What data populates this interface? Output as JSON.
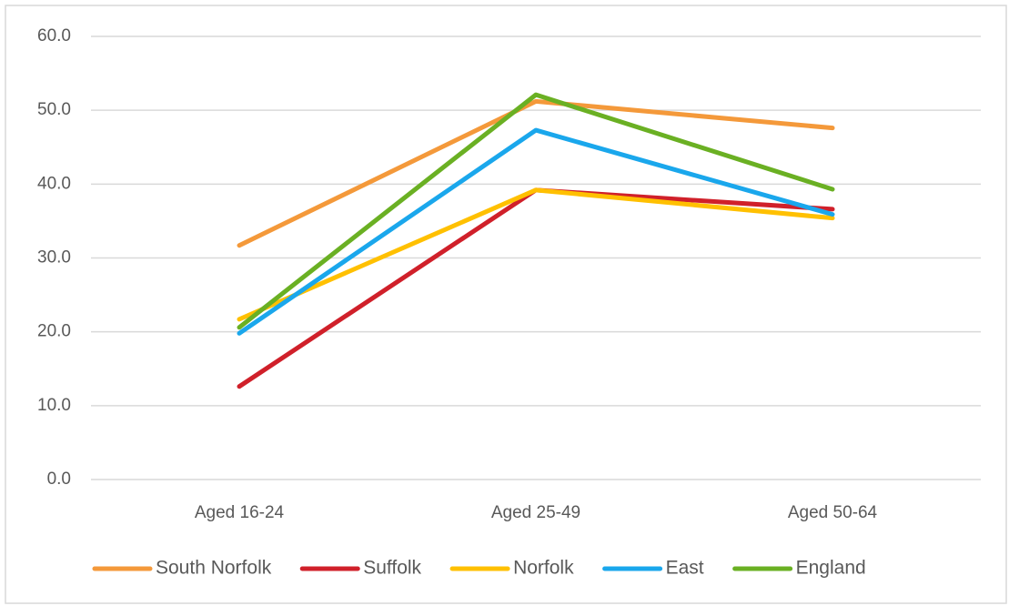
{
  "chart_data": {
    "type": "line",
    "categories": [
      "Aged 16-24",
      "Aged 25-49",
      "Aged 50-64"
    ],
    "series": [
      {
        "name": "South Norfolk",
        "color": "#f4993a",
        "values": [
          31.7,
          51.2,
          47.6
        ]
      },
      {
        "name": "Suffolk",
        "color": "#d0202a",
        "values": [
          12.6,
          39.2,
          36.6
        ]
      },
      {
        "name": "Norfolk",
        "color": "#ffc000",
        "values": [
          21.7,
          39.2,
          35.4
        ]
      },
      {
        "name": "East",
        "color": "#1aa7ec",
        "values": [
          19.8,
          47.3,
          35.9
        ]
      },
      {
        "name": "England",
        "color": "#6ab023",
        "values": [
          20.6,
          52.1,
          39.3
        ]
      }
    ],
    "ylim": [
      0,
      60
    ],
    "yticks": [
      {
        "value": 0,
        "label": "0.0"
      },
      {
        "value": 10,
        "label": "10.0"
      },
      {
        "value": 20,
        "label": "20.0"
      },
      {
        "value": 30,
        "label": "30.0"
      },
      {
        "value": 40,
        "label": "40.0"
      },
      {
        "value": 50,
        "label": "50.0"
      },
      {
        "value": 60,
        "label": "60.0"
      }
    ],
    "grid": true,
    "legend": "bottom"
  }
}
